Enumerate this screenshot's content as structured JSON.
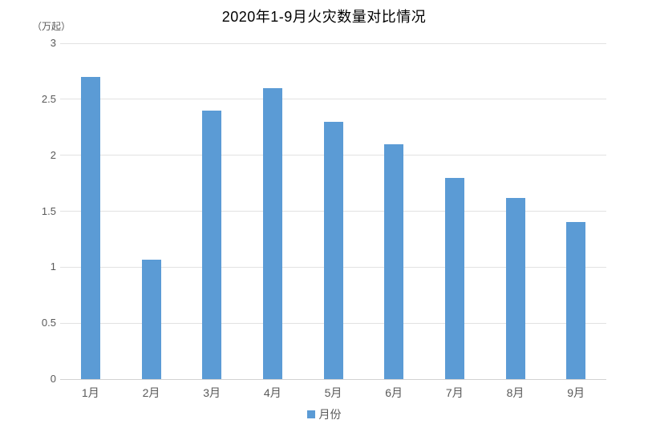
{
  "title": "2020年1-9月火灾数量对比情况",
  "y_unit_label": "（万起）",
  "legend": {
    "label": "月份",
    "position": "bottom"
  },
  "colors": {
    "bar": "#5b9bd5",
    "gridline": "#e2e2e2",
    "baseline": "#d3d3d3",
    "axis_text": "#595959",
    "title_text": "#000000",
    "background": "#ffffff"
  },
  "chart_data": {
    "type": "bar",
    "title": "2020年1-9月火灾数量对比情况",
    "categories": [
      "1月",
      "2月",
      "3月",
      "4月",
      "5月",
      "6月",
      "7月",
      "8月",
      "9月"
    ],
    "values": [
      2.7,
      1.07,
      2.4,
      2.6,
      2.3,
      2.1,
      1.8,
      1.62,
      1.4
    ],
    "series_name": "月份",
    "xlabel": "",
    "ylabel": "（万起）",
    "ylim": [
      0,
      3
    ],
    "y_ticks": [
      0,
      0.5,
      1,
      1.5,
      2,
      2.5,
      3
    ],
    "grid": true,
    "legend_position": "bottom"
  }
}
